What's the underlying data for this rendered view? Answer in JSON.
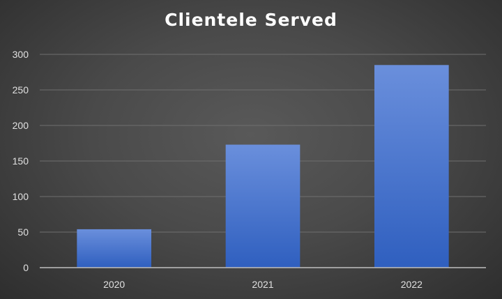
{
  "chart_data": {
    "type": "bar",
    "title": "Clientele Served",
    "xlabel": "",
    "ylabel": "",
    "categories": [
      "2020",
      "2021",
      "2022"
    ],
    "values": [
      54,
      173,
      285
    ],
    "ylim": [
      0,
      300
    ],
    "yticks": [
      0,
      50,
      100,
      150,
      200,
      250,
      300
    ],
    "grid": true,
    "legend": "none",
    "colors": {
      "bar_top": "#6a8fdc",
      "bar_bottom": "#2f5fbf",
      "grid": "#6f6f6f",
      "axis": "#bfbfbf",
      "tick_text": "#e0e0e0",
      "title_text": "#ffffff"
    }
  }
}
